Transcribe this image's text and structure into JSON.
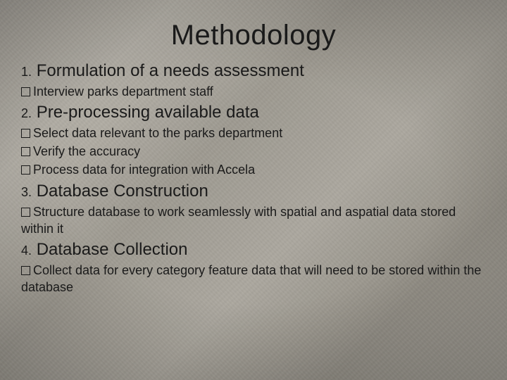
{
  "title": "Methodology",
  "sections": [
    {
      "num": "1.",
      "heading": "Formulation of a needs assessment",
      "bullets": [
        "Interview parks department staff"
      ]
    },
    {
      "num": "2.",
      "heading": "Pre-processing available data",
      "bullets": [
        "Select data relevant to the parks department",
        "Verify the accuracy",
        "Process data for integration with Accela"
      ]
    },
    {
      "num": "3.",
      "heading": "Database Construction",
      "bullets": [
        "Structure database to work seamlessly with spatial and aspatial data stored within it"
      ]
    },
    {
      "num": "4.",
      "heading": "Database Collection",
      "bullets": [
        "Collect data for every category feature data that will need to be stored within the database"
      ]
    }
  ],
  "style": {
    "title_fontsize": 40,
    "heading_fontsize": 24,
    "num_fontsize": 18,
    "bullet_fontsize": 18,
    "text_color": "#1a1a1a",
    "background_base": "#a5a198",
    "vignette_dark": "#3a3732"
  }
}
